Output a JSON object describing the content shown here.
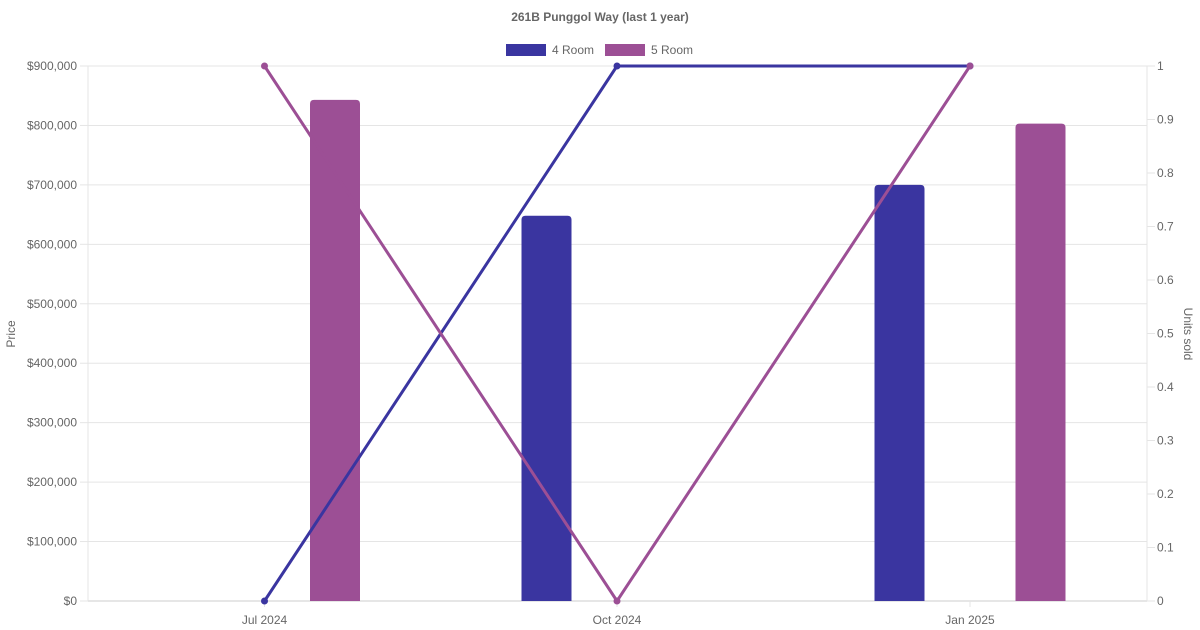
{
  "chart_data": {
    "type": "bar",
    "title": "261B Punggol Way (last 1 year)",
    "categories": [
      "Jul 2024",
      "Oct 2024",
      "Jan 2025"
    ],
    "legend": {
      "placement": "top-center"
    },
    "y_left": {
      "label": "Price",
      "range": [
        0,
        900000
      ],
      "ticks": [
        "$0",
        "$100,000",
        "$200,000",
        "$300,000",
        "$400,000",
        "$500,000",
        "$600,000",
        "$700,000",
        "$800,000",
        "$900,000"
      ],
      "tick_values": [
        0,
        100000,
        200000,
        300000,
        400000,
        500000,
        600000,
        700000,
        800000,
        900000
      ]
    },
    "y_right": {
      "label": "Units sold",
      "range": [
        0,
        1
      ],
      "ticks": [
        "0",
        "0.1",
        "0.2",
        "0.3",
        "0.4",
        "0.5",
        "0.6",
        "0.7",
        "0.8",
        "0.9",
        "1"
      ],
      "tick_values": [
        0,
        0.1,
        0.2,
        0.3,
        0.4,
        0.5,
        0.6,
        0.7,
        0.8,
        0.9,
        1
      ]
    },
    "grid": true,
    "series": [
      {
        "name": "4 Room",
        "color": "#3a35a0",
        "price": [
          null,
          648000,
          700000
        ],
        "units_sold": [
          0,
          1,
          1
        ]
      },
      {
        "name": "5 Room",
        "color": "#9c4f95",
        "price": [
          843000,
          null,
          803000
        ],
        "units_sold": [
          1,
          0,
          1
        ]
      }
    ]
  }
}
